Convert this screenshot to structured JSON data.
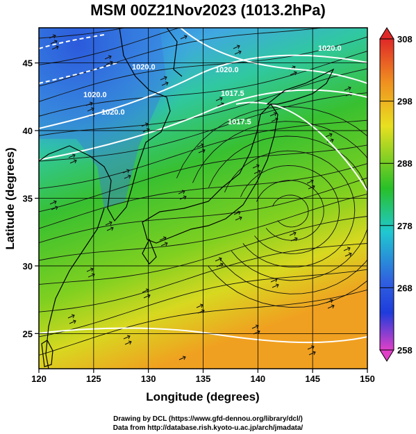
{
  "title": "MSM 00Z21Nov2023 (1013.2hPa)",
  "map": {
    "x_axis_label": "Longitude (degrees)",
    "y_axis_label": "Latitude  (degrees)",
    "x_ticks": [
      "120",
      "125",
      "130",
      "135",
      "140",
      "145",
      "150"
    ],
    "y_ticks": [
      "25",
      "30",
      "35",
      "40",
      "45"
    ],
    "x_range": [
      120,
      150
    ],
    "y_range": [
      22.4,
      47.6
    ],
    "isobar_labels": [
      "1020.0",
      "1020.0",
      "1017.5",
      "1017.5",
      "1020.0",
      "1020.0",
      "1020.0"
    ]
  },
  "colorbar": {
    "ticks": [
      "308",
      "298",
      "288",
      "278",
      "268",
      "258"
    ],
    "min": 258,
    "max": 308,
    "colors": {
      "magenta": "#e040c8",
      "blue": "#1e3cdc",
      "cyan": "#20c8d0",
      "green": "#28c028",
      "yellow": "#e8e020",
      "orange": "#f09020",
      "red": "#e02828"
    }
  },
  "credits": {
    "line1": "Drawing by DCL (https://www.gfd-dennou.org/library/dcl/)",
    "line2": "Data from http://database.rish.kyoto-u.ac.jp/arch/jmadata/"
  }
}
